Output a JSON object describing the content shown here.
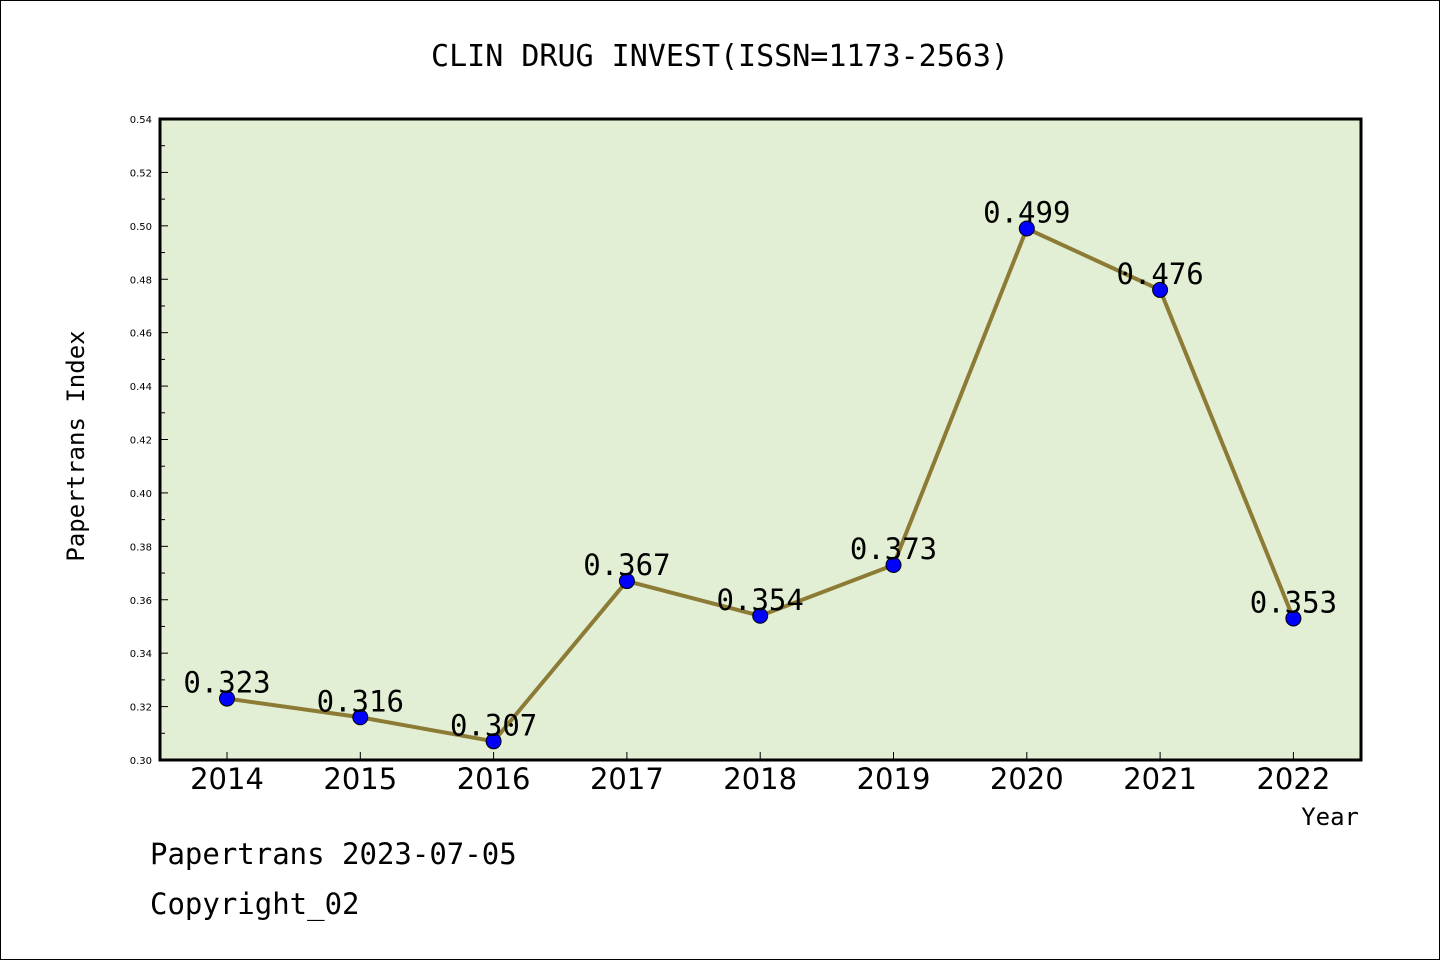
{
  "chart_data": {
    "type": "line",
    "title": "CLIN DRUG INVEST(ISSN=1173-2563)",
    "xlabel": "Year",
    "ylabel": "Papertrans Index",
    "categories": [
      "2014",
      "2015",
      "2016",
      "2017",
      "2018",
      "2019",
      "2020",
      "2021",
      "2022"
    ],
    "values": [
      0.323,
      0.316,
      0.307,
      0.367,
      0.354,
      0.373,
      0.499,
      0.476,
      0.353
    ],
    "data_labels": [
      "0.323",
      "0.316",
      "0.307",
      "0.367",
      "0.354",
      "0.373",
      "0.499",
      "0.476",
      "0.353"
    ],
    "ylim": [
      0.3,
      0.54
    ],
    "yticks": [
      "0.30",
      "0.32",
      "0.34",
      "0.36",
      "0.38",
      "0.40",
      "0.42",
      "0.44",
      "0.46",
      "0.48",
      "0.50",
      "0.52",
      "0.54"
    ],
    "grid": false,
    "colors": {
      "plot_background": "#e2efd5",
      "line": "#8c7b35",
      "marker": "#0000ff"
    }
  },
  "footer": {
    "line1": "Papertrans 2023-07-05",
    "line2": "Copyright_02"
  }
}
